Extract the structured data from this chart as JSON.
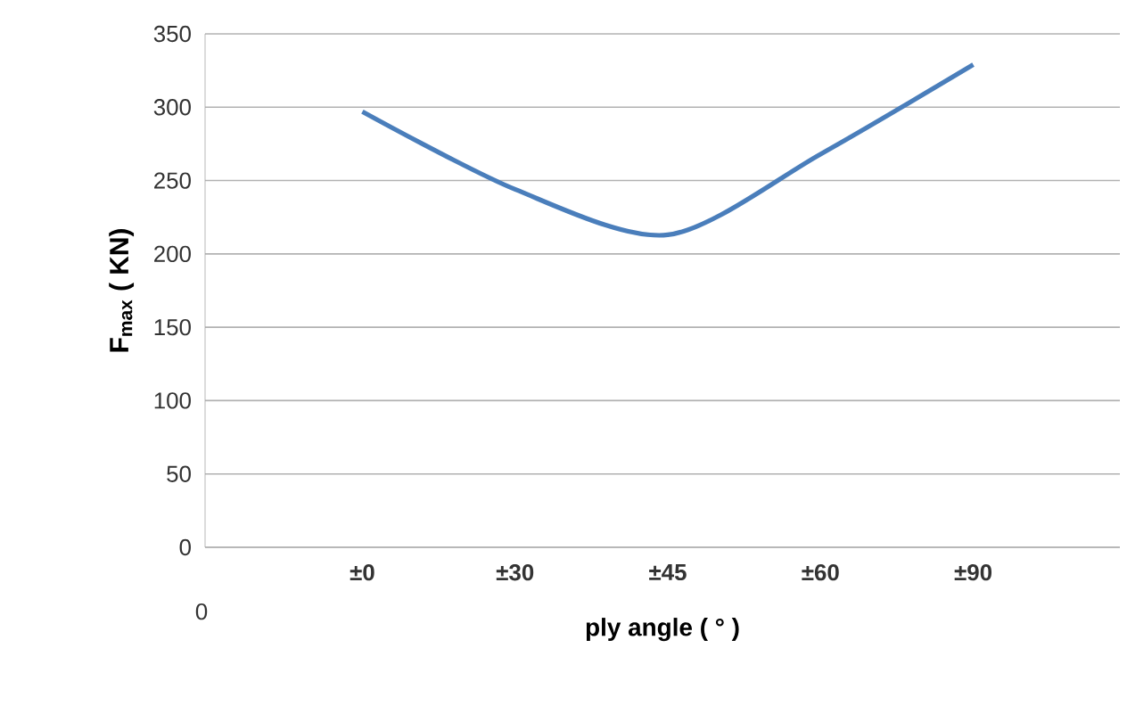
{
  "chart_data": {
    "type": "line",
    "xlabel": "ply angle ( ° )",
    "ylabel": "**F**$_{max}$ ( KN)",
    "categories": [
      "±0",
      "±30",
      "±45",
      "±60",
      "±90"
    ],
    "series": [
      {
        "color": "#4a7ebb",
        "values": [
          297,
          244,
          213,
          268,
          329
        ]
      }
    ],
    "ylim": [
      0,
      350
    ],
    "yticks": [
      0,
      50,
      100,
      150,
      200,
      250,
      300,
      350
    ],
    "annotations": [
      "0"
    ],
    "grid": "y",
    "marker": "none",
    "line_style": "solid"
  }
}
